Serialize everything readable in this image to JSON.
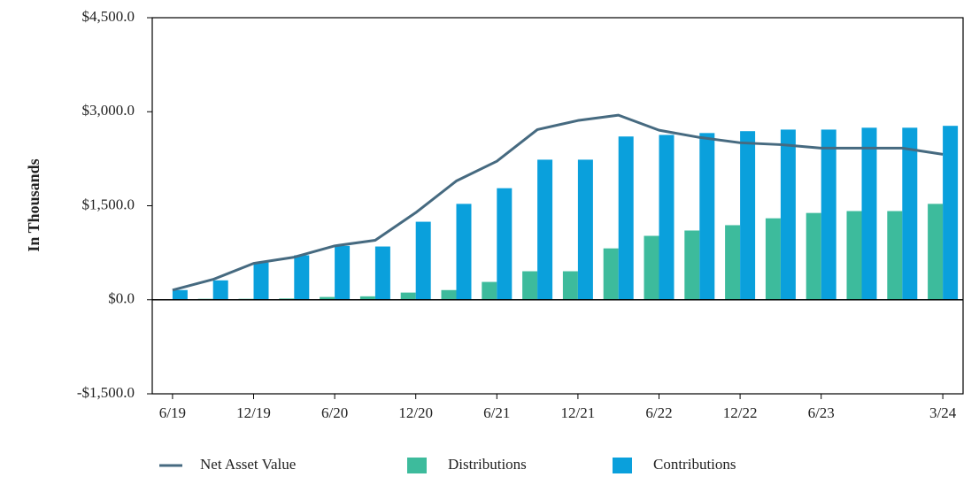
{
  "chart_data": {
    "type": "bar-line",
    "y_label": "In Thousands",
    "categories": [
      "6/19",
      null,
      "12/19",
      null,
      "6/20",
      null,
      "12/20",
      null,
      "6/21",
      null,
      "12/21",
      null,
      "6/22",
      null,
      "12/22",
      null,
      "6/23",
      null,
      null,
      "3/24"
    ],
    "series": [
      {
        "name": "Net Asset Value",
        "type": "line",
        "color": "#466a80",
        "values": [
          155,
          325,
          580,
          680,
          860,
          950,
          1390,
          1895,
          2210,
          2715,
          2860,
          2945,
          2705,
          2590,
          2505,
          2475,
          2420,
          2420,
          2420,
          2320
        ]
      },
      {
        "name": "Distributions",
        "type": "bar",
        "color": "#3dbb9c",
        "values": [
          10,
          15,
          15,
          20,
          45,
          55,
          115,
          155,
          285,
          455,
          455,
          820,
          1020,
          1105,
          1190,
          1300,
          1385,
          1415,
          1415,
          1530
        ]
      },
      {
        "name": "Contributions",
        "type": "bar",
        "color": "#0aa0dc",
        "values": [
          155,
          310,
          595,
          710,
          860,
          850,
          1245,
          1530,
          1780,
          2235,
          2235,
          2605,
          2630,
          2660,
          2690,
          2715,
          2715,
          2745,
          2745,
          2775
        ]
      }
    ],
    "ylim": [
      -1500,
      4500
    ],
    "yticks": [
      {
        "value": -1500,
        "label": "-$1,500.0"
      },
      {
        "value": 0,
        "label": "$0.0"
      },
      {
        "value": 1500,
        "label": "$1,500.0"
      },
      {
        "value": 3000,
        "label": "$3,000.0"
      },
      {
        "value": 4500,
        "label": "$4,500.0"
      }
    ],
    "grid": false,
    "legend": "bottom"
  }
}
